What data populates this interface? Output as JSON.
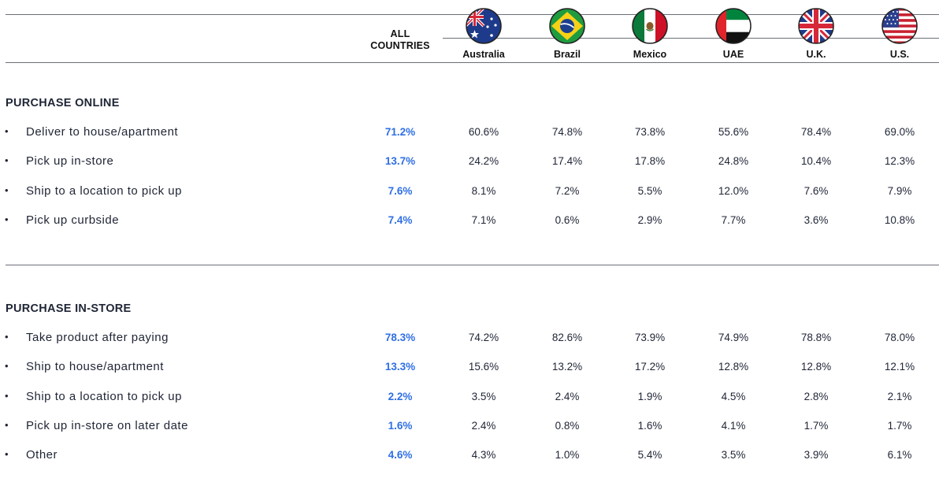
{
  "header": {
    "all_countries_label_line1": "ALL",
    "all_countries_label_line2": "COUNTRIES",
    "countries": [
      {
        "name": "Australia",
        "flag": "australia-flag-icon"
      },
      {
        "name": "Brazil",
        "flag": "brazil-flag-icon"
      },
      {
        "name": "Mexico",
        "flag": "mexico-flag-icon"
      },
      {
        "name": "UAE",
        "flag": "uae-flag-icon"
      },
      {
        "name": "U.K.",
        "flag": "uk-flag-icon"
      },
      {
        "name": "U.S.",
        "flag": "us-flag-icon"
      }
    ]
  },
  "colors": {
    "accent": "#2f6fe4",
    "text": "#1f2535",
    "rule": "#6b6f78"
  },
  "chart_data": {
    "type": "table",
    "columns": [
      "ALL COUNTRIES",
      "Australia",
      "Brazil",
      "Mexico",
      "UAE",
      "U.K.",
      "U.S."
    ],
    "sections": [
      {
        "title": "PURCHASE ONLINE",
        "rows": [
          {
            "label": "Deliver to house/apartment",
            "values": [
              "71.2%",
              "60.6%",
              "74.8%",
              "73.8%",
              "55.6%",
              "78.4%",
              "69.0%"
            ]
          },
          {
            "label": "Pick up in-store",
            "values": [
              "13.7%",
              "24.2%",
              "17.4%",
              "17.8%",
              "24.8%",
              "10.4%",
              "12.3%"
            ]
          },
          {
            "label": "Ship to a location to pick up",
            "values": [
              "7.6%",
              "8.1%",
              "7.2%",
              "5.5%",
              "12.0%",
              "7.6%",
              "7.9%"
            ]
          },
          {
            "label": "Pick up curbside",
            "values": [
              "7.4%",
              "7.1%",
              "0.6%",
              "2.9%",
              "7.7%",
              "3.6%",
              "10.8%"
            ]
          }
        ]
      },
      {
        "title": "PURCHASE IN-STORE",
        "rows": [
          {
            "label": "Take product after paying",
            "values": [
              "78.3%",
              "74.2%",
              "82.6%",
              "73.9%",
              "74.9%",
              "78.8%",
              "78.0%"
            ]
          },
          {
            "label": "Ship to house/apartment",
            "values": [
              "13.3%",
              "15.6%",
              "13.2%",
              "17.2%",
              "12.8%",
              "12.8%",
              "12.1%"
            ]
          },
          {
            "label": "Ship to a location to pick up",
            "values": [
              "2.2%",
              "3.5%",
              "2.4%",
              "1.9%",
              "4.5%",
              "2.8%",
              "2.1%"
            ]
          },
          {
            "label": "Pick up in-store on later date",
            "values": [
              "1.6%",
              "2.4%",
              "0.8%",
              "1.6%",
              "4.1%",
              "1.7%",
              "1.7%"
            ]
          },
          {
            "label": "Other",
            "values": [
              "4.6%",
              "4.3%",
              "1.0%",
              "5.4%",
              "3.5%",
              "3.9%",
              "6.1%"
            ]
          }
        ]
      }
    ]
  }
}
